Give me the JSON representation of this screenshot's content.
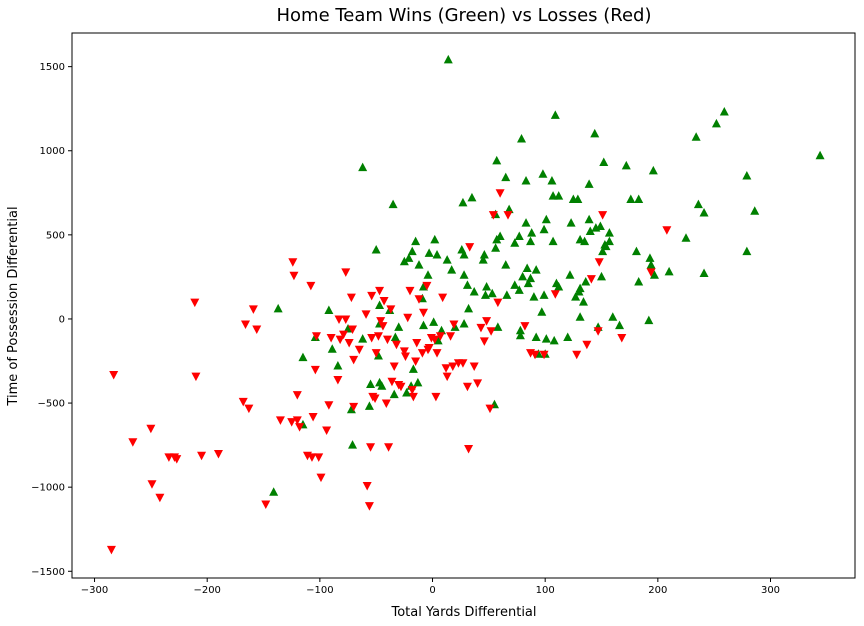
{
  "chart_data": {
    "type": "scatter",
    "title": "Home Team Wins (Green) vs Losses (Red)",
    "xlabel": "Total Yards Differential",
    "ylabel": "Time of Possession Differential",
    "xlim": [
      -320,
      375
    ],
    "ylim": [
      -1540,
      1700
    ],
    "xticks": [
      -300,
      -200,
      -100,
      0,
      100,
      200,
      300
    ],
    "yticks": [
      -1500,
      -1000,
      -500,
      0,
      500,
      1000,
      1500
    ],
    "grid": false,
    "series": [
      {
        "marker": "triangle-up",
        "color": "#008000",
        "points": [
          [
            14,
            1540
          ],
          [
            109,
            1210
          ],
          [
            259,
            1230
          ],
          [
            252,
            1160
          ],
          [
            144,
            1100
          ],
          [
            234,
            1080
          ],
          [
            79,
            1070
          ],
          [
            344,
            970
          ],
          [
            152,
            930
          ],
          [
            57,
            940
          ],
          [
            172,
            910
          ],
          [
            196,
            880
          ],
          [
            279,
            850
          ],
          [
            98,
            860
          ],
          [
            -62,
            900
          ],
          [
            83,
            820
          ],
          [
            65,
            840
          ],
          [
            139,
            800
          ],
          [
            183,
            710
          ],
          [
            107,
            730
          ],
          [
            112,
            730
          ],
          [
            176,
            710
          ],
          [
            129,
            710
          ],
          [
            125,
            710
          ],
          [
            286,
            640
          ],
          [
            236,
            680
          ],
          [
            241,
            630
          ],
          [
            83,
            570
          ],
          [
            123,
            570
          ],
          [
            101,
            590
          ],
          [
            139,
            590
          ],
          [
            149,
            550
          ],
          [
            35,
            720
          ],
          [
            -35,
            680
          ],
          [
            56,
            620
          ],
          [
            68,
            650
          ],
          [
            27,
            690
          ],
          [
            88,
            510
          ],
          [
            99,
            530
          ],
          [
            140,
            520
          ],
          [
            157,
            510
          ],
          [
            145,
            540
          ],
          [
            225,
            480
          ],
          [
            135,
            460
          ],
          [
            107,
            460
          ],
          [
            131,
            470
          ],
          [
            57,
            470
          ],
          [
            87,
            460
          ],
          [
            -15,
            460
          ],
          [
            2,
            470
          ],
          [
            4,
            380
          ],
          [
            26,
            410
          ],
          [
            28,
            380
          ],
          [
            56,
            420
          ],
          [
            73,
            450
          ],
          [
            60,
            490
          ],
          [
            77,
            490
          ],
          [
            193,
            360
          ],
          [
            194,
            320
          ],
          [
            153,
            440
          ],
          [
            151,
            400
          ],
          [
            210,
            280
          ],
          [
            241,
            270
          ],
          [
            279,
            400
          ],
          [
            183,
            220
          ],
          [
            122,
            260
          ],
          [
            92,
            290
          ],
          [
            84,
            300
          ],
          [
            85,
            210
          ],
          [
            77,
            170
          ],
          [
            53,
            150
          ],
          [
            47,
            140
          ],
          [
            -18,
            400
          ],
          [
            -21,
            360
          ],
          [
            -12,
            320
          ],
          [
            -50,
            410
          ],
          [
            -25,
            340
          ],
          [
            -3,
            390
          ],
          [
            -4,
            260
          ],
          [
            13,
            350
          ],
          [
            17,
            290
          ],
          [
            28,
            260
          ],
          [
            31,
            200
          ],
          [
            37,
            160
          ],
          [
            45,
            350
          ],
          [
            46,
            380
          ],
          [
            66,
            140
          ],
          [
            87,
            240
          ],
          [
            110,
            210
          ],
          [
            136,
            220
          ],
          [
            130,
            160
          ],
          [
            127,
            130
          ],
          [
            131,
            180
          ],
          [
            160,
            10
          ],
          [
            192,
            -10
          ],
          [
            166,
            -40
          ],
          [
            131,
            10
          ],
          [
            147,
            -50
          ],
          [
            108,
            -130
          ],
          [
            101,
            -120
          ],
          [
            92,
            -110
          ],
          [
            120,
            -110
          ],
          [
            78,
            -70
          ],
          [
            78,
            -100
          ],
          [
            58,
            -50
          ],
          [
            5,
            -130
          ],
          [
            8,
            -70
          ],
          [
            -8,
            -40
          ],
          [
            1,
            -20
          ],
          [
            20,
            -50
          ],
          [
            28,
            -30
          ],
          [
            32,
            60
          ],
          [
            -9,
            120
          ],
          [
            -8,
            190
          ],
          [
            -30,
            -50
          ],
          [
            -33,
            -110
          ],
          [
            -38,
            50
          ],
          [
            -47,
            -30
          ],
          [
            -47,
            80
          ],
          [
            -62,
            -120
          ],
          [
            -75,
            -60
          ],
          [
            -89,
            -180
          ],
          [
            -104,
            -110
          ],
          [
            -115,
            -230
          ],
          [
            -92,
            50
          ],
          [
            -137,
            60
          ],
          [
            -84,
            -280
          ],
          [
            -72,
            -540
          ],
          [
            -56,
            -520
          ],
          [
            -55,
            -390
          ],
          [
            -47,
            -380
          ],
          [
            -48,
            -220
          ],
          [
            -45,
            -400
          ],
          [
            -34,
            -450
          ],
          [
            -19,
            -400
          ],
          [
            -13,
            -380
          ],
          [
            -17,
            -300
          ],
          [
            -23,
            -440
          ],
          [
            55,
            -510
          ],
          [
            -71,
            -750
          ],
          [
            -141,
            -1030
          ],
          [
            -115,
            -630
          ],
          [
            94,
            -210
          ],
          [
            100,
            -210
          ],
          [
            97,
            40
          ],
          [
            90,
            130
          ],
          [
            112,
            190
          ],
          [
            150,
            250
          ],
          [
            154,
            430
          ],
          [
            157,
            460
          ],
          [
            181,
            400
          ],
          [
            106,
            820
          ],
          [
            48,
            190
          ],
          [
            65,
            320
          ],
          [
            73,
            200
          ],
          [
            80,
            250
          ],
          [
            99,
            140
          ],
          [
            134,
            100
          ],
          [
            197,
            260
          ]
        ]
      },
      {
        "marker": "triangle-down",
        "color": "#ff0000",
        "points": [
          [
            -285,
            -1370
          ],
          [
            -283,
            -330
          ],
          [
            -266,
            -730
          ],
          [
            -250,
            -650
          ],
          [
            -249,
            -980
          ],
          [
            -242,
            -1060
          ],
          [
            -234,
            -820
          ],
          [
            -227,
            -830
          ],
          [
            -211,
            100
          ],
          [
            -210,
            -340
          ],
          [
            -205,
            -810
          ],
          [
            -190,
            -800
          ],
          [
            -168,
            -490
          ],
          [
            -166,
            -30
          ],
          [
            -163,
            -530
          ],
          [
            -159,
            60
          ],
          [
            -156,
            -60
          ],
          [
            -148,
            -1100
          ],
          [
            -135,
            -600
          ],
          [
            -125,
            -610
          ],
          [
            -124,
            340
          ],
          [
            -123,
            260
          ],
          [
            -120,
            -450
          ],
          [
            -120,
            -600
          ],
          [
            -118,
            -640
          ],
          [
            -111,
            -810
          ],
          [
            -108,
            200
          ],
          [
            -107,
            -820
          ],
          [
            -106,
            -580
          ],
          [
            -104,
            -300
          ],
          [
            -103,
            -100
          ],
          [
            -101,
            -820
          ],
          [
            -99,
            -940
          ],
          [
            -94,
            -660
          ],
          [
            -92,
            -510
          ],
          [
            -90,
            -110
          ],
          [
            -84,
            -360
          ],
          [
            -83,
            0
          ],
          [
            -82,
            -120
          ],
          [
            -79,
            -90
          ],
          [
            -77,
            0
          ],
          [
            -77,
            280
          ],
          [
            -74,
            -140
          ],
          [
            -72,
            130
          ],
          [
            -71,
            -60
          ],
          [
            -70,
            -240
          ],
          [
            -70,
            -520
          ],
          [
            -65,
            -180
          ],
          [
            -59,
            30
          ],
          [
            -58,
            -990
          ],
          [
            -56,
            -1110
          ],
          [
            -55,
            -760
          ],
          [
            -54,
            140
          ],
          [
            -53,
            -460
          ],
          [
            -51,
            -470
          ],
          [
            -50,
            -200
          ],
          [
            -48,
            -100
          ],
          [
            -47,
            170
          ],
          [
            -46,
            -10
          ],
          [
            -44,
            -40
          ],
          [
            -43,
            110
          ],
          [
            -41,
            -500
          ],
          [
            -40,
            -120
          ],
          [
            -39,
            -760
          ],
          [
            -37,
            60
          ],
          [
            -36,
            -370
          ],
          [
            -34,
            -280
          ],
          [
            -32,
            -150
          ],
          [
            -30,
            -390
          ],
          [
            -28,
            -400
          ],
          [
            -25,
            -190
          ],
          [
            -24,
            -220
          ],
          [
            -22,
            10
          ],
          [
            -20,
            170
          ],
          [
            -18,
            -420
          ],
          [
            -17,
            -460
          ],
          [
            -15,
            -250
          ],
          [
            -14,
            -140
          ],
          [
            -12,
            120
          ],
          [
            -9,
            -200
          ],
          [
            -8,
            40
          ],
          [
            -5,
            200
          ],
          [
            -4,
            -180
          ],
          [
            -3,
            -170
          ],
          [
            -1,
            -110
          ],
          [
            2,
            -120
          ],
          [
            3,
            -460
          ],
          [
            4,
            -200
          ],
          [
            7,
            -100
          ],
          [
            9,
            130
          ],
          [
            12,
            -290
          ],
          [
            13,
            -340
          ],
          [
            16,
            -100
          ],
          [
            18,
            -280
          ],
          [
            19,
            -30
          ],
          [
            23,
            -260
          ],
          [
            27,
            -260
          ],
          [
            31,
            -400
          ],
          [
            32,
            -770
          ],
          [
            33,
            430
          ],
          [
            37,
            -280
          ],
          [
            40,
            -380
          ],
          [
            43,
            -50
          ],
          [
            46,
            -130
          ],
          [
            48,
            -10
          ],
          [
            51,
            -530
          ],
          [
            52,
            -70
          ],
          [
            54,
            620
          ],
          [
            58,
            100
          ],
          [
            60,
            750
          ],
          [
            67,
            620
          ],
          [
            82,
            -40
          ],
          [
            87,
            -200
          ],
          [
            91,
            -210
          ],
          [
            99,
            -210
          ],
          [
            109,
            150
          ],
          [
            128,
            -210
          ],
          [
            137,
            -150
          ],
          [
            141,
            240
          ],
          [
            147,
            -70
          ],
          [
            148,
            340
          ],
          [
            151,
            620
          ],
          [
            168,
            -110
          ],
          [
            194,
            280
          ],
          [
            208,
            530
          ],
          [
            -229,
            -820
          ],
          [
            -54,
            -110
          ]
        ]
      }
    ]
  }
}
